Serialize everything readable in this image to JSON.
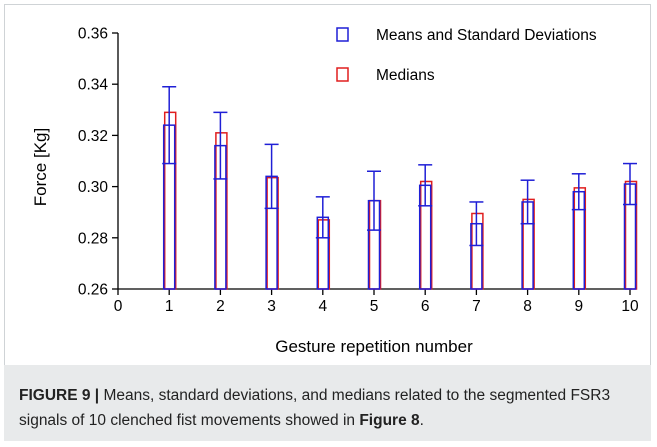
{
  "chart_data": {
    "type": "bar",
    "categories": [
      "1",
      "2",
      "3",
      "4",
      "5",
      "6",
      "7",
      "8",
      "9",
      "10"
    ],
    "x_ticks": [
      "0",
      "1",
      "2",
      "3",
      "4",
      "5",
      "6",
      "7",
      "8",
      "9",
      "10"
    ],
    "xlabel": "Gesture repetition number",
    "ylabel": "Force [Kg]",
    "ylim": [
      0.26,
      0.36
    ],
    "y_ticks": [
      "0.26",
      "0.28",
      "0.30",
      "0.32",
      "0.34",
      "0.36"
    ],
    "grid": false,
    "legend_position": "top-right",
    "series": [
      {
        "name": "Means and Standard Deviations",
        "color": "#1f1fd6",
        "values": [
          0.324,
          0.316,
          0.304,
          0.288,
          0.2945,
          0.3005,
          0.2855,
          0.294,
          0.298,
          0.301
        ],
        "std": [
          0.015,
          0.013,
          0.0125,
          0.008,
          0.0115,
          0.008,
          0.0085,
          0.0085,
          0.007,
          0.008
        ]
      },
      {
        "name": "Medians",
        "color": "#e01e1e",
        "values": [
          0.329,
          0.321,
          0.3035,
          0.287,
          0.2945,
          0.302,
          0.2895,
          0.295,
          0.2995,
          0.302
        ]
      }
    ]
  },
  "caption": {
    "label": "FIGURE 9 |",
    "text": " Means, standard deviations, and medians related to the segmented FSR3 signals of 10 clenched fist movements showed in ",
    "ref": "Figure 8",
    "end": "."
  }
}
